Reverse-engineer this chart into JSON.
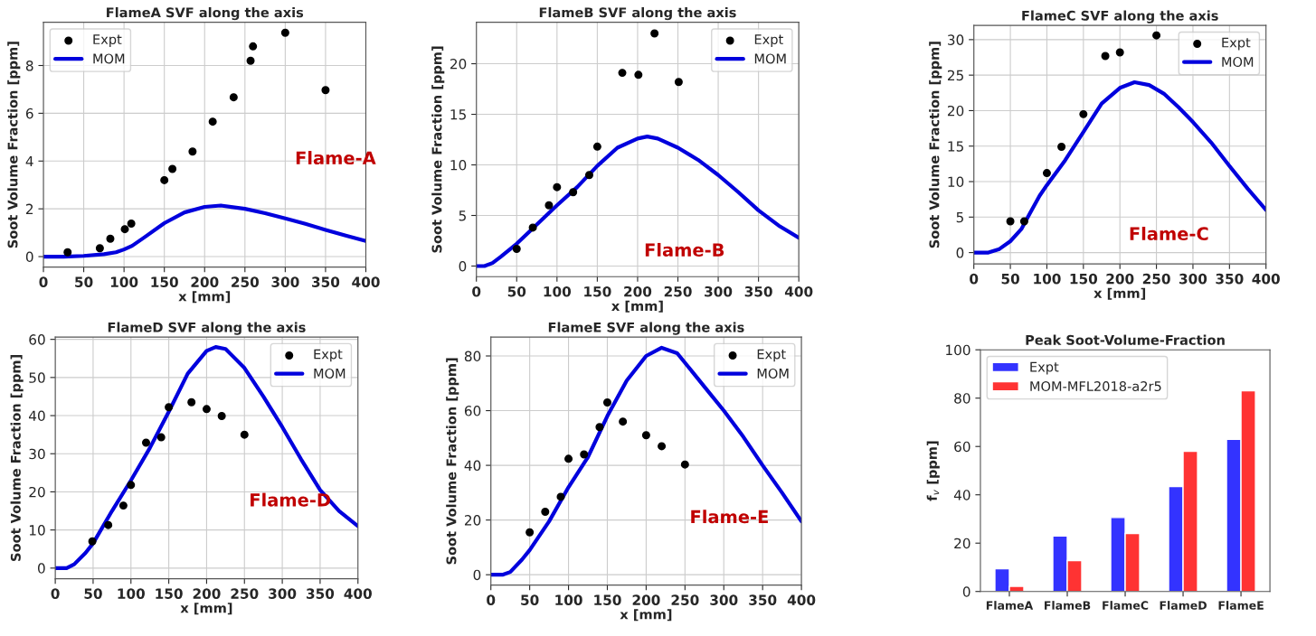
{
  "chart_data": [
    {
      "type": "line",
      "title": "FlameA SVF along the axis",
      "xlabel": "x [mm]",
      "ylabel": "Soot Volume Fraction [ppm]",
      "xlim": [
        0,
        400
      ],
      "xticks": [
        0,
        50,
        100,
        150,
        200,
        250,
        300,
        350,
        400
      ],
      "ylim": [
        -0.44,
        9.81
      ],
      "yticks": [
        0,
        2,
        4,
        6,
        8
      ],
      "grid": true,
      "legend": "top left",
      "annotations": [
        "Flame-A"
      ],
      "series": [
        {
          "name": "Expt",
          "type": "scatter",
          "marker": "circle",
          "color": "#000000",
          "x": [
            30,
            70,
            83,
            101,
            109,
            150,
            160,
            185,
            210,
            236,
            257,
            260,
            300,
            350
          ],
          "values": [
            0.18,
            0.35,
            0.75,
            1.15,
            1.38,
            3.2,
            3.67,
            4.4,
            5.65,
            6.67,
            8.2,
            8.8,
            9.37,
            6.97
          ]
        },
        {
          "name": "MOM",
          "type": "line",
          "color": "#0000dd",
          "x": [
            0,
            25,
            50,
            75,
            90,
            100,
            110,
            125,
            150,
            175,
            200,
            220,
            250,
            275,
            300,
            325,
            350,
            375,
            400
          ],
          "values": [
            0,
            0,
            0.03,
            0.1,
            0.18,
            0.3,
            0.45,
            0.8,
            1.4,
            1.85,
            2.08,
            2.14,
            2.0,
            1.82,
            1.6,
            1.37,
            1.12,
            0.88,
            0.65
          ]
        }
      ]
    },
    {
      "type": "line",
      "title": "FlameB SVF along the axis",
      "xlabel": "x [mm]",
      "ylabel": "Soot Volume Fraction [ppm]",
      "xlim": [
        0,
        400
      ],
      "xticks": [
        0,
        50,
        100,
        150,
        200,
        250,
        300,
        350,
        400
      ],
      "ylim": [
        -1.05,
        24.1
      ],
      "yticks": [
        0,
        5,
        10,
        15,
        20
      ],
      "grid": true,
      "legend": "top right",
      "annotations": [
        "Flame-B"
      ],
      "series": [
        {
          "name": "Expt",
          "type": "scatter",
          "marker": "circle",
          "color": "#000000",
          "x": [
            50,
            70,
            90,
            100,
            120,
            140,
            150,
            181,
            201,
            221,
            251
          ],
          "values": [
            1.7,
            3.8,
            6.0,
            7.8,
            7.3,
            9.0,
            11.8,
            19.1,
            18.9,
            23.0,
            18.2
          ]
        },
        {
          "name": "MOM",
          "type": "line",
          "color": "#0000dd",
          "x": [
            0,
            10,
            20,
            30,
            50,
            75,
            100,
            125,
            150,
            175,
            200,
            212,
            225,
            250,
            275,
            300,
            325,
            350,
            375,
            400
          ],
          "values": [
            0,
            0,
            0.3,
            0.9,
            2.2,
            4.1,
            6.0,
            7.8,
            9.9,
            11.7,
            12.6,
            12.8,
            12.6,
            11.7,
            10.5,
            9.0,
            7.3,
            5.5,
            4.0,
            2.8
          ]
        }
      ]
    },
    {
      "type": "line",
      "title": "FlameC SVF along the axis",
      "xlabel": "x [mm]",
      "ylabel": "Soot Volume Fraction [ppm]",
      "xlim": [
        0,
        400
      ],
      "xticks": [
        0,
        50,
        100,
        150,
        200,
        250,
        300,
        350,
        400
      ],
      "ylim": [
        -1.6,
        32.0
      ],
      "yticks": [
        0,
        5,
        10,
        15,
        20,
        25,
        30
      ],
      "grid": true,
      "legend": "top right",
      "annotations": [
        "Flame-C"
      ],
      "series": [
        {
          "name": "Expt",
          "type": "scatter",
          "marker": "circle",
          "color": "#000000",
          "x": [
            50,
            69,
            100,
            120,
            150,
            180,
            200,
            250
          ],
          "values": [
            4.4,
            4.4,
            11.2,
            14.9,
            19.5,
            27.7,
            28.2,
            30.6
          ]
        },
        {
          "name": "MOM",
          "type": "line",
          "color": "#0000dd",
          "x": [
            0,
            20,
            35,
            50,
            65,
            75,
            90,
            100,
            125,
            150,
            175,
            200,
            220,
            240,
            260,
            280,
            300,
            325,
            350,
            375,
            400
          ],
          "values": [
            0,
            0,
            0.5,
            1.6,
            3.3,
            5.2,
            8.0,
            9.5,
            13.0,
            17.0,
            21.0,
            23.2,
            24.0,
            23.6,
            22.4,
            20.5,
            18.4,
            15.5,
            12.2,
            9.0,
            6.0
          ]
        }
      ]
    },
    {
      "type": "line",
      "title": "FlameD SVF along the axis",
      "xlabel": "x [mm]",
      "ylabel": "Soot Volume Fraction [ppm]",
      "xlim": [
        0,
        400
      ],
      "xticks": [
        0,
        50,
        100,
        150,
        200,
        250,
        300,
        350,
        400
      ],
      "ylim": [
        -2.8,
        60.6
      ],
      "yticks": [
        0,
        10,
        20,
        30,
        40,
        50,
        60
      ],
      "grid": true,
      "legend": "top right",
      "annotations": [
        "Flame-D"
      ],
      "series": [
        {
          "name": "Expt",
          "type": "scatter",
          "marker": "circle",
          "color": "#000000",
          "x": [
            49,
            70,
            90,
            100,
            120,
            140,
            150,
            180,
            200,
            220,
            250
          ],
          "values": [
            7,
            11.3,
            16.4,
            21.8,
            32.9,
            34.3,
            42.2,
            43.5,
            41.7,
            39.9,
            35
          ]
        },
        {
          "name": "MOM",
          "type": "line",
          "color": "#0000dd",
          "x": [
            0,
            15,
            25,
            40,
            50,
            75,
            100,
            125,
            150,
            175,
            200,
            212,
            225,
            250,
            275,
            300,
            325,
            350,
            375,
            400
          ],
          "values": [
            0,
            0,
            1,
            4,
            6.5,
            15,
            23,
            31.5,
            41,
            51,
            57,
            58,
            57.5,
            52.5,
            45,
            37,
            28.5,
            20.5,
            15,
            11
          ]
        }
      ]
    },
    {
      "type": "line",
      "title": "FlameE SVF along the axis",
      "xlabel": "x [mm]",
      "ylabel": "Soot Volume Fraction [ppm]",
      "xlim": [
        0,
        400
      ],
      "xticks": [
        0,
        50,
        100,
        150,
        200,
        250,
        300,
        350,
        400
      ],
      "ylim": [
        -3.8,
        86.9
      ],
      "yticks": [
        0,
        20,
        40,
        60,
        80
      ],
      "grid": true,
      "legend": "top right",
      "annotations": [
        "Flame-E"
      ],
      "series": [
        {
          "name": "Expt",
          "type": "scatter",
          "marker": "circle",
          "color": "#000000",
          "x": [
            50,
            70,
            90,
            100,
            120,
            140,
            150,
            170,
            200,
            220,
            250
          ],
          "values": [
            15.5,
            23,
            28.5,
            42.4,
            44,
            54,
            63,
            56,
            51,
            47,
            40.3
          ]
        },
        {
          "name": "MOM",
          "type": "line",
          "color": "#0000dd",
          "x": [
            0,
            15,
            25,
            40,
            50,
            75,
            100,
            125,
            150,
            175,
            200,
            220,
            240,
            260,
            280,
            300,
            325,
            350,
            375,
            400
          ],
          "values": [
            0,
            0,
            1,
            5.5,
            9,
            19.5,
            32,
            43,
            58,
            71,
            80,
            83,
            81,
            74,
            67,
            60,
            50.5,
            40,
            30,
            19.5
          ]
        }
      ]
    },
    {
      "type": "bar",
      "title": "Peak Soot-Volume-Fraction",
      "ylabel": "f$_{v}$ [ppm]",
      "categories": [
        "FlameA",
        "FlameB",
        "FlameC",
        "FlameD",
        "FlameE"
      ],
      "ylim": [
        0,
        100
      ],
      "yticks": [
        0,
        20,
        40,
        60,
        80,
        100
      ],
      "legend": "top left",
      "series": [
        {
          "name": "Expt",
          "color": "#3333ff",
          "values": [
            9.4,
            23,
            30.6,
            43.4,
            63
          ]
        },
        {
          "name": "MOM-MFL2018-a2r5",
          "color": "#ff3333",
          "values": [
            2.1,
            12.8,
            24,
            58,
            83
          ]
        }
      ]
    }
  ]
}
